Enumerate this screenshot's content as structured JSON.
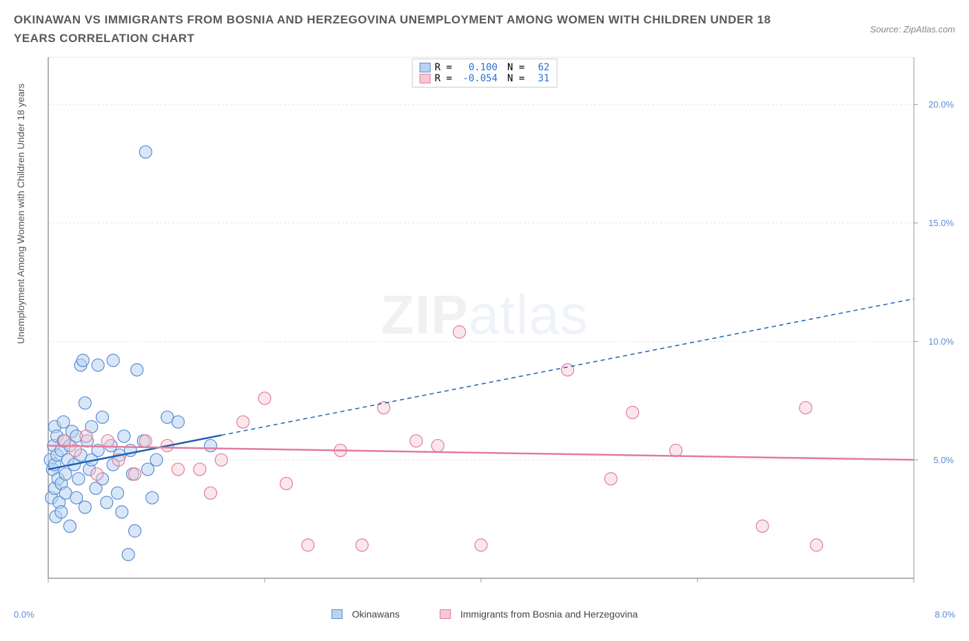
{
  "title": "OKINAWAN VS IMMIGRANTS FROM BOSNIA AND HERZEGOVINA UNEMPLOYMENT AMONG WOMEN WITH CHILDREN UNDER 18 YEARS CORRELATION CHART",
  "source_label": "Source: ZipAtlas.com",
  "ylabel": "Unemployment Among Women with Children Under 18 years",
  "watermark": "ZIPatlas",
  "xlim": [
    0,
    8
  ],
  "ylim": [
    0,
    22
  ],
  "xticks": [
    0,
    2,
    4,
    6,
    8
  ],
  "xtick_labels": [
    "0.0%",
    "",
    "",
    "",
    "8.0%"
  ],
  "yticks": [
    5,
    10,
    15,
    20
  ],
  "ytick_labels": [
    "5.0%",
    "10.0%",
    "15.0%",
    "20.0%"
  ],
  "grid_color": "#e5e5e5",
  "axis_color": "#999999",
  "bg_color": "#ffffff",
  "series": [
    {
      "name": "Okinawans",
      "color_fill": "#b8d4f0",
      "color_stroke": "#5b8bd4",
      "line_color": "#1f5fb0",
      "R": "0.100",
      "N": "62",
      "marker_r": 9,
      "fill_opacity": 0.55,
      "trend": {
        "x1": 0.0,
        "y1": 4.6,
        "x2": 8.0,
        "y2": 11.8,
        "solid_until_x": 1.6
      },
      "points": [
        [
          0.02,
          5.0
        ],
        [
          0.03,
          3.4
        ],
        [
          0.04,
          4.6
        ],
        [
          0.05,
          5.6
        ],
        [
          0.06,
          6.4
        ],
        [
          0.06,
          4.8
        ],
        [
          0.06,
          3.8
        ],
        [
          0.07,
          2.6
        ],
        [
          0.08,
          5.2
        ],
        [
          0.08,
          6.0
        ],
        [
          0.09,
          4.2
        ],
        [
          0.1,
          3.2
        ],
        [
          0.12,
          5.4
        ],
        [
          0.12,
          4.0
        ],
        [
          0.12,
          2.8
        ],
        [
          0.14,
          5.8
        ],
        [
          0.14,
          6.6
        ],
        [
          0.16,
          3.6
        ],
        [
          0.16,
          4.4
        ],
        [
          0.18,
          5.0
        ],
        [
          0.2,
          2.2
        ],
        [
          0.2,
          5.6
        ],
        [
          0.22,
          6.2
        ],
        [
          0.24,
          4.8
        ],
        [
          0.26,
          3.4
        ],
        [
          0.26,
          6.0
        ],
        [
          0.28,
          4.2
        ],
        [
          0.3,
          5.2
        ],
        [
          0.3,
          9.0
        ],
        [
          0.32,
          9.2
        ],
        [
          0.34,
          3.0
        ],
        [
          0.34,
          7.4
        ],
        [
          0.36,
          5.8
        ],
        [
          0.38,
          4.6
        ],
        [
          0.4,
          6.4
        ],
        [
          0.4,
          5.0
        ],
        [
          0.44,
          3.8
        ],
        [
          0.46,
          9.0
        ],
        [
          0.46,
          5.4
        ],
        [
          0.5,
          4.2
        ],
        [
          0.5,
          6.8
        ],
        [
          0.54,
          3.2
        ],
        [
          0.58,
          5.6
        ],
        [
          0.6,
          9.2
        ],
        [
          0.6,
          4.8
        ],
        [
          0.64,
          3.6
        ],
        [
          0.66,
          5.2
        ],
        [
          0.68,
          2.8
        ],
        [
          0.7,
          6.0
        ],
        [
          0.74,
          1.0
        ],
        [
          0.76,
          5.4
        ],
        [
          0.78,
          4.4
        ],
        [
          0.8,
          2.0
        ],
        [
          0.82,
          8.8
        ],
        [
          0.88,
          5.8
        ],
        [
          0.9,
          18.0
        ],
        [
          0.92,
          4.6
        ],
        [
          0.96,
          3.4
        ],
        [
          1.0,
          5.0
        ],
        [
          1.1,
          6.8
        ],
        [
          1.2,
          6.6
        ],
        [
          1.5,
          5.6
        ]
      ]
    },
    {
      "name": "Immigants from Bosnia and Herzegovina",
      "color_fill": "#f5c9d3",
      "color_stroke": "#e47a9a",
      "line_color": "#e47a9a",
      "R": "-0.054",
      "N": "31",
      "marker_r": 9,
      "fill_opacity": 0.45,
      "trend": {
        "x1": 0.0,
        "y1": 5.6,
        "x2": 8.0,
        "y2": 5.0,
        "solid_until_x": 8.0
      },
      "points": [
        [
          0.15,
          5.8
        ],
        [
          0.25,
          5.4
        ],
        [
          0.35,
          6.0
        ],
        [
          0.45,
          4.4
        ],
        [
          0.55,
          5.8
        ],
        [
          0.65,
          5.0
        ],
        [
          0.8,
          4.4
        ],
        [
          0.9,
          5.8
        ],
        [
          1.1,
          5.6
        ],
        [
          1.2,
          4.6
        ],
        [
          1.4,
          4.6
        ],
        [
          1.5,
          3.6
        ],
        [
          1.6,
          5.0
        ],
        [
          1.8,
          6.6
        ],
        [
          2.0,
          7.6
        ],
        [
          2.2,
          4.0
        ],
        [
          2.4,
          1.4
        ],
        [
          2.7,
          5.4
        ],
        [
          2.9,
          1.4
        ],
        [
          3.1,
          7.2
        ],
        [
          3.4,
          5.8
        ],
        [
          3.6,
          5.6
        ],
        [
          3.8,
          10.4
        ],
        [
          4.0,
          1.4
        ],
        [
          4.8,
          8.8
        ],
        [
          5.2,
          4.2
        ],
        [
          5.4,
          7.0
        ],
        [
          5.8,
          5.4
        ],
        [
          6.6,
          2.2
        ],
        [
          7.0,
          7.2
        ],
        [
          7.1,
          1.4
        ]
      ]
    }
  ],
  "legend_bottom": {
    "series1_label": "Okinawans",
    "series2_label": "Immigrants from Bosnia and Herzegovina"
  },
  "stats_labels": {
    "R": "R =",
    "N": "N ="
  }
}
